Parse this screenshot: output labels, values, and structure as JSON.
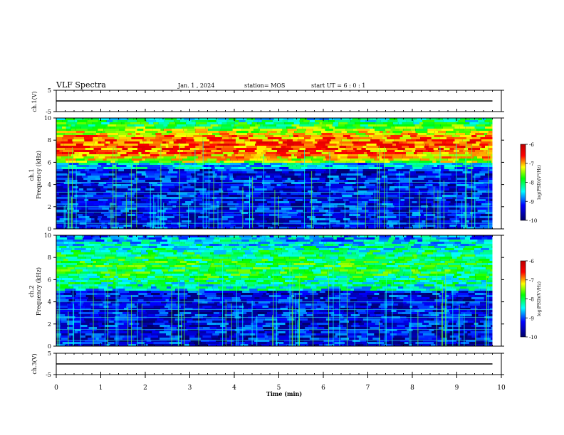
{
  "header": {
    "title": "VLF Spectra",
    "date": "Jan. 1 , 2024",
    "station": "station= MOS",
    "start": "start UT = 6 : 0 : 1"
  },
  "colors": {
    "spectrum_scale": [
      "#000066",
      "#0000ff",
      "#00ffff",
      "#00ff00",
      "#ffff00",
      "#ff0000",
      "#bb0000"
    ],
    "frame": "#000000"
  },
  "chart_data": [
    {
      "type": "line",
      "name": "ch1-voltage",
      "ylabel": "ch.1(V)",
      "ylim": [
        -5,
        5
      ],
      "yticks": [
        5,
        -5
      ],
      "xlim": [
        0,
        10
      ],
      "series": [
        {
          "x": [
            0,
            9.8
          ],
          "y": [
            0,
            0
          ]
        }
      ]
    },
    {
      "type": "heatmap",
      "name": "ch1-spectrogram",
      "ylabel": "ch.1 Frequency (kHz)",
      "ylim": [
        0,
        10
      ],
      "yticks": [
        0,
        2,
        4,
        6,
        8,
        10
      ],
      "xlim": [
        0,
        10
      ],
      "data_end_min": 9.8,
      "colorbar": {
        "label": "log(PSD)(V²/Hz)",
        "ticks": [
          -6,
          -7,
          -8,
          -9,
          -10
        ],
        "range": [
          -10,
          -6
        ]
      }
    },
    {
      "type": "heatmap",
      "name": "ch2-spectrogram",
      "ylabel": "ch.2 Frequency (kHz)",
      "ylim": [
        0,
        10
      ],
      "yticks": [
        0,
        2,
        4,
        6,
        8,
        10
      ],
      "xlim": [
        0,
        10
      ],
      "data_end_min": 9.8,
      "colorbar": {
        "label": "log(PSD)(V²/Hz)",
        "ticks": [
          -6,
          -7,
          -8,
          -9,
          -10
        ],
        "range": [
          -10,
          -6
        ]
      }
    },
    {
      "type": "line",
      "name": "ch3-voltage",
      "ylabel": "ch.3(V)",
      "ylim": [
        -5,
        5
      ],
      "yticks": [
        5,
        -5
      ],
      "xlim": [
        0,
        10
      ],
      "series": [
        {
          "x": [
            0,
            9.8
          ],
          "y": [
            0,
            0
          ]
        }
      ]
    }
  ],
  "xaxis": {
    "label": "Time (min)",
    "ticks": [
      "0",
      "1",
      "2",
      "3",
      "4",
      "5",
      "6",
      "7",
      "8",
      "9",
      "10"
    ]
  },
  "labels": {
    "ch1_v": "ch.1(V)",
    "ch1_top": "ch.1",
    "ch1_bottom": "Frequency (kHz)",
    "ch2_top": "ch.2",
    "ch2_bottom": "Frequency (kHz)",
    "ch3_v": "ch.3(V)",
    "cb_label": "log(PSD)(V²/Hz)"
  }
}
